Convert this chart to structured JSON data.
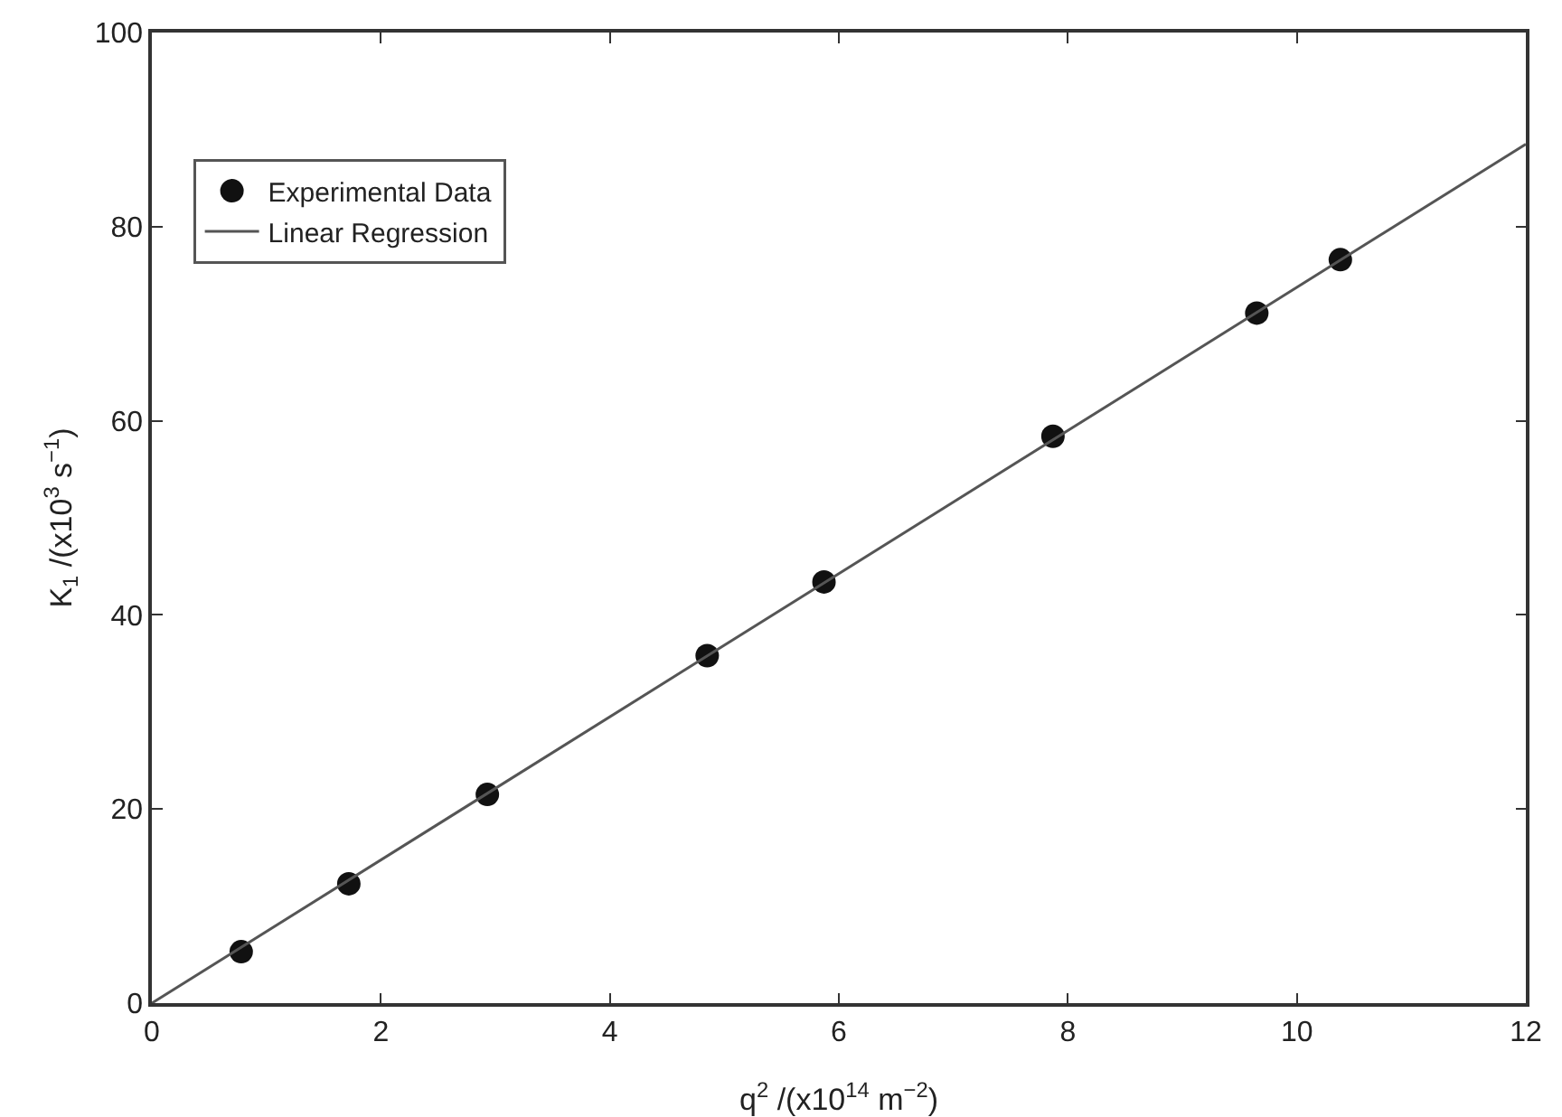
{
  "chart_data": {
    "type": "scatter",
    "xlabel": "q$^{2}$ /(x10$^{14}$ m$^{−2}$)",
    "ylabel": "K$_{1}$ /(x10$^{3}$ s$^{−1}$)",
    "xlim": [
      0,
      12
    ],
    "xticks": [
      0,
      2,
      4,
      6,
      8,
      10,
      12
    ],
    "ylim": [
      0,
      100
    ],
    "yticks": [
      0,
      20,
      40,
      60,
      80,
      100
    ],
    "grid": false,
    "legend": "top left",
    "series": [
      {
        "name": "Experimental Data",
        "marker": "circle",
        "color": "#111111",
        "x": [
          0.78,
          1.72,
          2.93,
          4.85,
          5.87,
          7.87,
          9.65,
          10.38
        ],
        "values": [
          5.3,
          12.3,
          21.5,
          35.8,
          43.4,
          58.4,
          71.1,
          76.6
        ]
      },
      {
        "name": "Linear Regression",
        "type": "line",
        "line_style": "solid",
        "color": "#555555",
        "x": [
          0,
          12
        ],
        "values": [
          0,
          88.5
        ]
      }
    ]
  }
}
